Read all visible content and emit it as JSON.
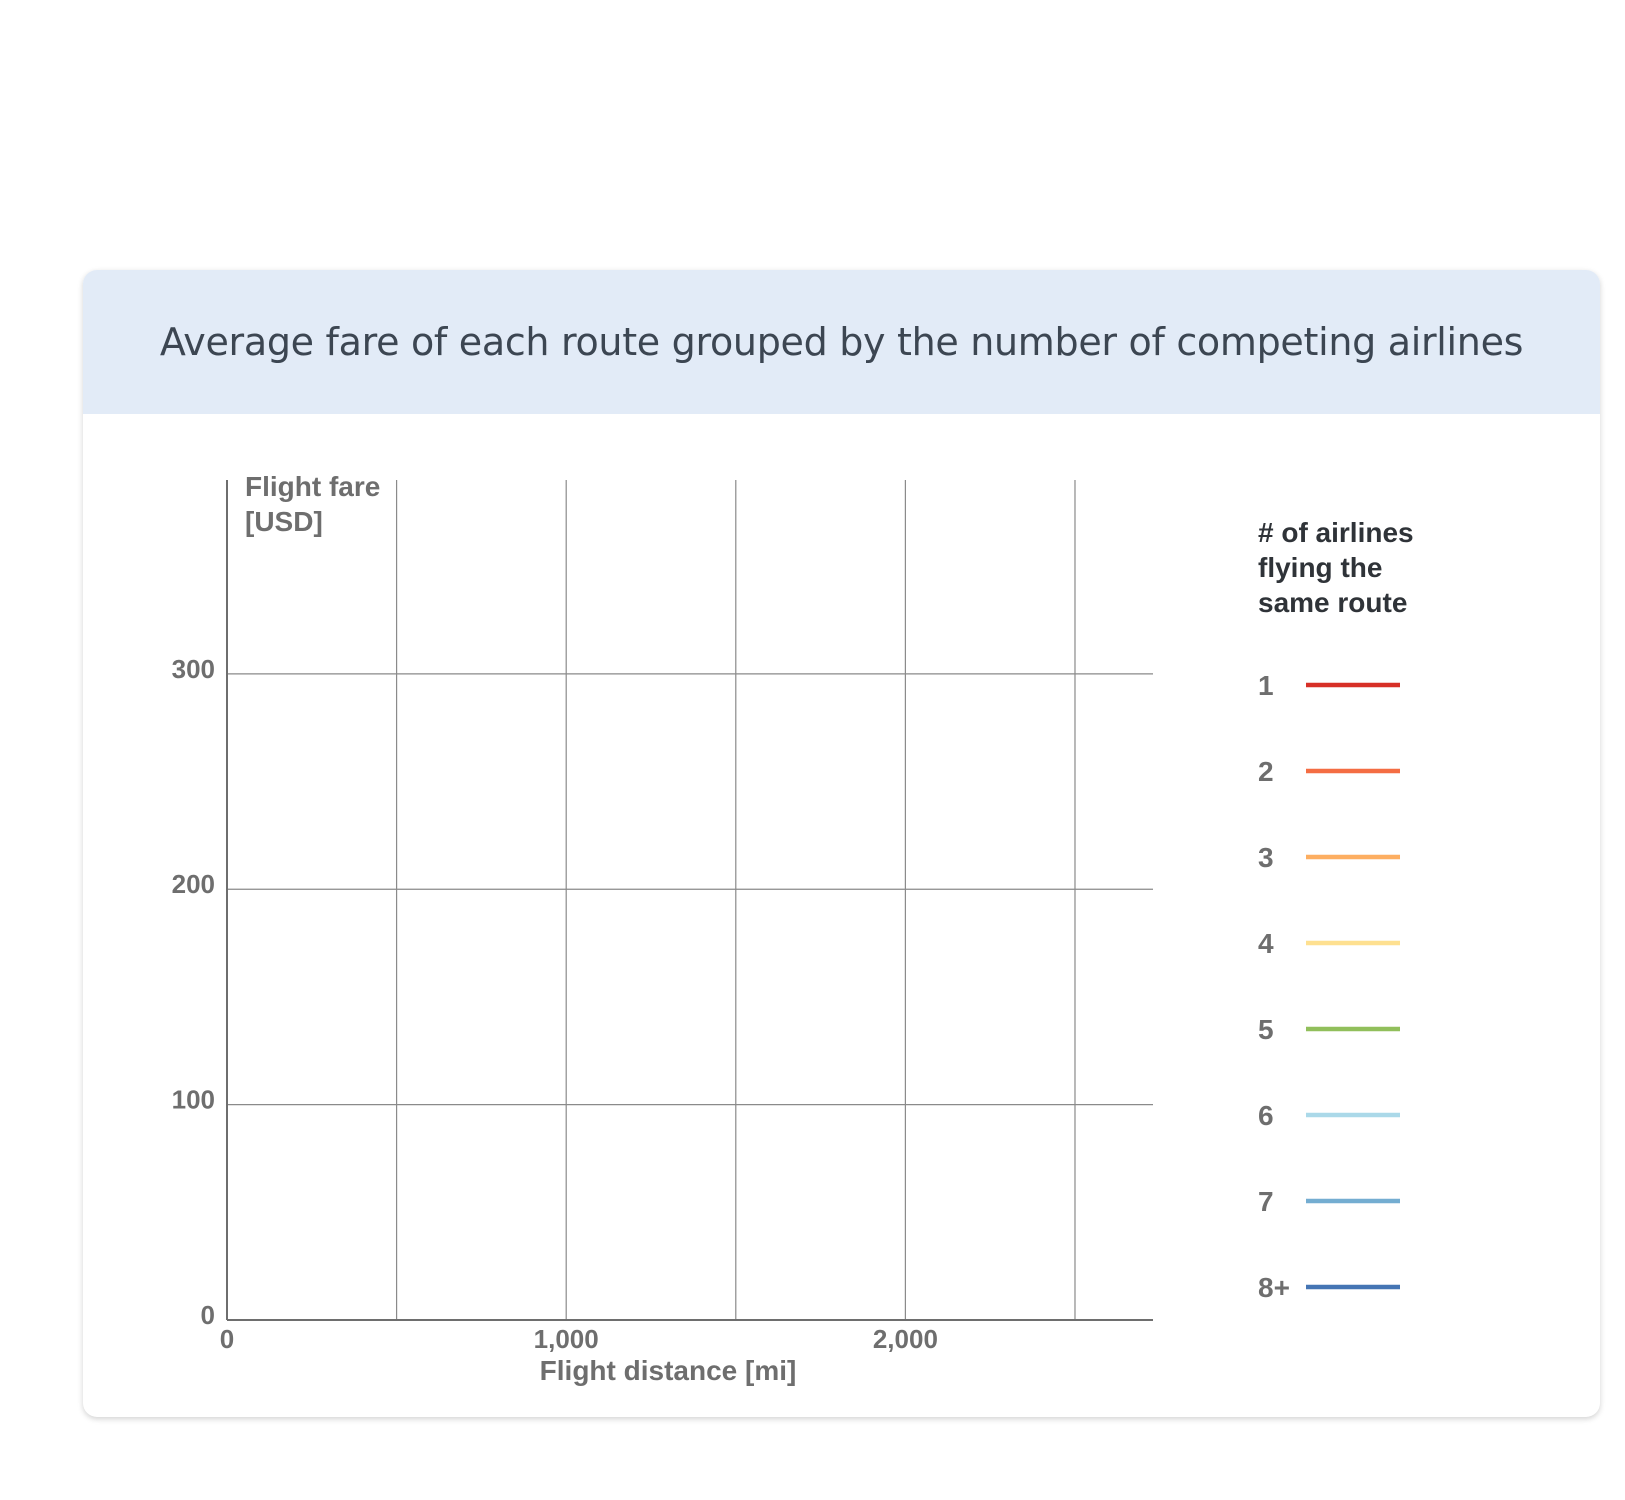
{
  "card": {
    "title": "Average fare of each route grouped by the number of competing airlines"
  },
  "chart_data": {
    "type": "line",
    "title": "Average fare of each route grouped by the number of competing airlines",
    "ylabel_lines": [
      "Flight fare",
      "[USD]"
    ],
    "xlabel": "Flight distance [mi]",
    "xlim": [
      0,
      2730
    ],
    "ylim": [
      0,
      390
    ],
    "x_ticks": [
      0,
      1000,
      2000
    ],
    "x_tick_labels": [
      "0",
      "1,000",
      "2,000"
    ],
    "x_gridlines": [
      500,
      1000,
      1500,
      2000,
      2500
    ],
    "y_ticks": [
      0,
      100,
      200,
      300
    ],
    "y_tick_labels": [
      "0",
      "100",
      "200",
      "300"
    ],
    "grid": true,
    "legend": {
      "placement": "right",
      "title_lines": [
        "# of airlines",
        "flying the",
        "same route"
      ],
      "items": [
        {
          "label": "1",
          "color": "#d73027"
        },
        {
          "label": "2",
          "color": "#f46d43"
        },
        {
          "label": "3",
          "color": "#fdae61"
        },
        {
          "label": "4",
          "color": "#fee090"
        },
        {
          "label": "5",
          "color": "#91bf5b"
        },
        {
          "label": "6",
          "color": "#abd9e9"
        },
        {
          "label": "7",
          "color": "#74add1"
        },
        {
          "label": "8+",
          "color": "#4575b4"
        }
      ]
    },
    "series": []
  }
}
